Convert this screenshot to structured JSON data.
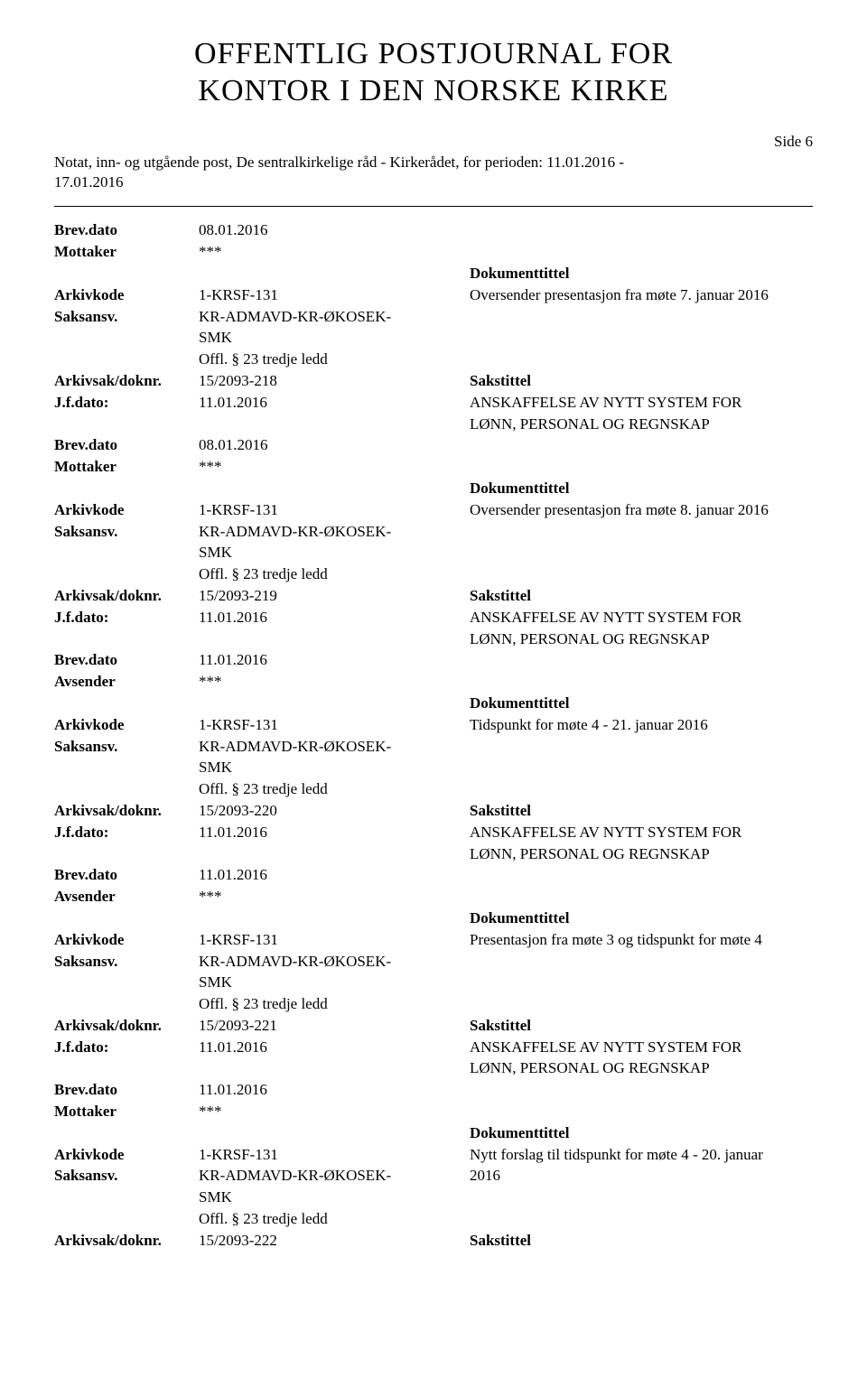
{
  "header": {
    "title_line1": "OFFENTLIG POSTJOURNAL FOR",
    "title_line2": "KONTOR I DEN NORSKE KIRKE",
    "side_label": "Side 6",
    "intro_line1": "Notat, inn- og utgående post, De sentralkirkelige råd - Kirkerådet, for perioden: 11.01.2016 -",
    "intro_line2": "17.01.2016"
  },
  "labels": {
    "brevdato": "Brev.dato",
    "mottaker": "Mottaker",
    "avsender": "Avsender",
    "arkivkode": "Arkivkode",
    "saksansv": "Saksansv.",
    "arkivsak": "Arkivsak/doknr.",
    "jfdato": "J.f.dato:",
    "dokumenttittel": "Dokumenttittel",
    "sakstittel": "Sakstittel"
  },
  "common": {
    "arkivkode_val": "1-KRSF-131",
    "saksansv_line1": "KR-ADMAVD-KR-ØKOSEK-",
    "saksansv_line2": "SMK",
    "offl": "Offl. § 23 tredje ledd",
    "jfdato_val": "11.01.2016",
    "stars": "***",
    "anskaffelse": "ANSKAFFELSE AV NYTT SYSTEM FOR",
    "anskaffelse2": "LØNN, PERSONAL OG REGNSKAP"
  },
  "entries": [
    {
      "brevdato": "08.01.2016",
      "party_label": "Mottaker",
      "doktittel": "Oversender presentasjon fra møte 7. januar 2016",
      "arkivsak": "15/2093-218"
    },
    {
      "brevdato": "08.01.2016",
      "party_label": "Mottaker",
      "doktittel": "Oversender presentasjon fra møte 8. januar 2016",
      "arkivsak": "15/2093-219"
    },
    {
      "brevdato": "11.01.2016",
      "party_label": "Avsender",
      "doktittel": "Tidspunkt for møte 4 - 21. januar 2016",
      "arkivsak": "15/2093-220"
    },
    {
      "brevdato": "11.01.2016",
      "party_label": "Avsender",
      "doktittel": "Presentasjon fra møte 3 og tidspunkt for møte 4",
      "arkivsak": "15/2093-221"
    },
    {
      "brevdato": "11.01.2016",
      "party_label": "Mottaker",
      "doktittel_line1": "Nytt forslag til tidspunkt for møte 4 - 20. januar",
      "doktittel_line2": "2016",
      "arkivsak": "15/2093-222"
    }
  ]
}
